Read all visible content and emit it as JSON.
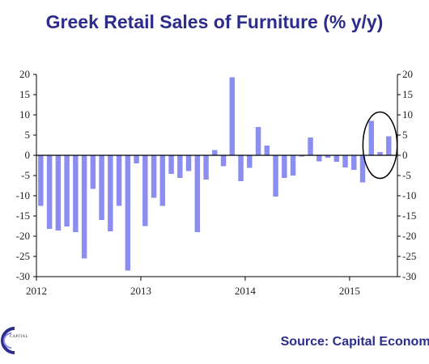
{
  "title": "Greek Retail Sales of Furniture (% y/y)",
  "source": "Source: Capital Economi",
  "logo_text": "CAPITAL",
  "colors": {
    "title": "#2b2c8c",
    "bar": "#8b8ef0",
    "ellipse": "#000000"
  },
  "chart_data": {
    "type": "bar",
    "title": "Greek Retail Sales of Furniture (% y/y)",
    "xlabel": "",
    "ylabel": "",
    "ylim": [
      -30,
      20
    ],
    "yticks": [
      20,
      15,
      10,
      5,
      0,
      -5,
      -10,
      -15,
      -20,
      -25,
      -30
    ],
    "ytick_labels_right": [
      "20",
      "15",
      "10",
      "5",
      "0",
      "-5",
      "-10",
      "-15",
      "-20",
      "-25",
      "-30"
    ],
    "x_tick_labels": [
      "2012",
      "2013",
      "2014",
      "2015"
    ],
    "x_tick_months": [
      "2012-01",
      "2013-01",
      "2014-01",
      "2015-01"
    ],
    "grid": false,
    "legend": "none",
    "annotation": "ellipse around Mar-May 2015",
    "months": [
      "2012-01",
      "2012-02",
      "2012-03",
      "2012-04",
      "2012-05",
      "2012-06",
      "2012-07",
      "2012-08",
      "2012-09",
      "2012-10",
      "2012-11",
      "2012-12",
      "2013-01",
      "2013-02",
      "2013-03",
      "2013-04",
      "2013-05",
      "2013-06",
      "2013-07",
      "2013-08",
      "2013-09",
      "2013-10",
      "2013-11",
      "2013-12",
      "2014-01",
      "2014-02",
      "2014-03",
      "2014-04",
      "2014-05",
      "2014-06",
      "2014-07",
      "2014-08",
      "2014-09",
      "2014-10",
      "2014-11",
      "2014-12",
      "2015-01",
      "2015-02",
      "2015-03",
      "2015-04",
      "2015-05"
    ],
    "values": [
      -12.5,
      -18.2,
      -18.6,
      -17.6,
      -19.0,
      -25.5,
      -8.3,
      -16.0,
      -18.8,
      -12.5,
      -28.5,
      -2.0,
      -17.5,
      -10.5,
      -12.5,
      -4.6,
      -5.6,
      -3.9,
      -19.0,
      -6.0,
      1.3,
      -2.7,
      19.3,
      -6.4,
      -3.1,
      7.0,
      2.4,
      -10.2,
      -5.6,
      -5.0,
      -0.3,
      4.4,
      -1.5,
      -0.6,
      -1.6,
      -3.0,
      -3.6,
      -6.7,
      8.5,
      0.8,
      4.7
    ]
  }
}
